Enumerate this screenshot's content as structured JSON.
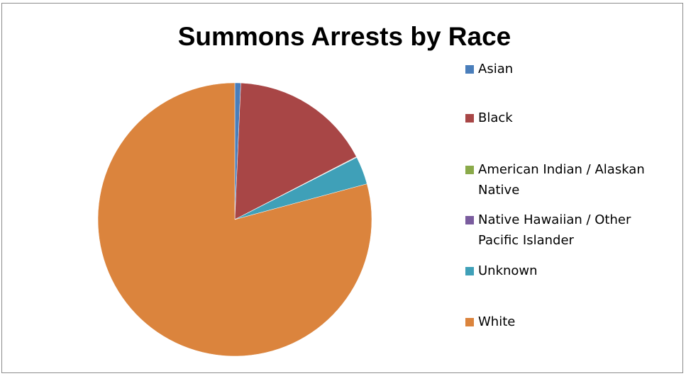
{
  "chart_data": {
    "type": "pie",
    "title": "Summons Arrests by Race",
    "legend_position": "right",
    "slices": [
      {
        "label": "Asian",
        "value": 0.7,
        "color": "#4a7ebb"
      },
      {
        "label": "Black",
        "value": 16.7,
        "color": "#a84646"
      },
      {
        "label": "American Indian / Alaskan Native",
        "value": 0.05,
        "color": "#8aaa4a"
      },
      {
        "label": "Native Hawaiian / Other Pacific Islander",
        "value": 0.05,
        "color": "#7a5c9e"
      },
      {
        "label": "Unknown",
        "value": 3.3,
        "color": "#3fa0b8"
      },
      {
        "label": "White",
        "value": 79.2,
        "color": "#db843d"
      }
    ]
  }
}
